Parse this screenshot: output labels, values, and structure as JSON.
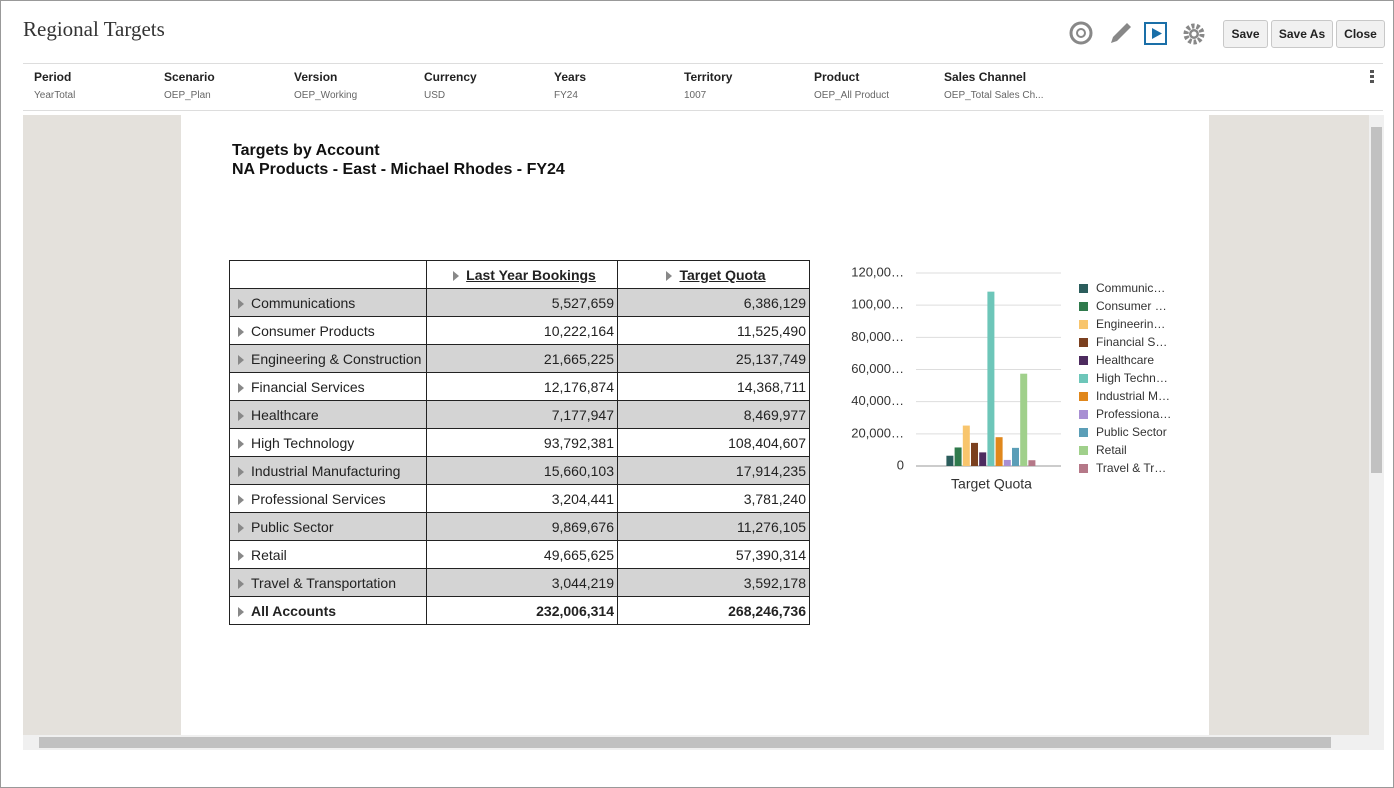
{
  "header": {
    "title": "Regional Targets",
    "buttons": [
      "Save",
      "Save As",
      "Close"
    ]
  },
  "pov": [
    {
      "label": "Period",
      "value": "YearTotal"
    },
    {
      "label": "Scenario",
      "value": "OEP_Plan"
    },
    {
      "label": "Version",
      "value": "OEP_Working"
    },
    {
      "label": "Currency",
      "value": "USD"
    },
    {
      "label": "Years",
      "value": "FY24"
    },
    {
      "label": "Territory",
      "value": "1007"
    },
    {
      "label": "Product",
      "value": "OEP_All Product"
    },
    {
      "label": "Sales Channel",
      "value": "OEP_Total Sales Ch..."
    }
  ],
  "report": {
    "title": "Targets by Account",
    "subtitle": "NA Products - East - Michael Rhodes - FY24"
  },
  "table": {
    "columns": [
      "Last Year Bookings",
      "Target Quota"
    ],
    "rows": [
      [
        "Communications",
        "5,527,659",
        "6,386,129"
      ],
      [
        "Consumer Products",
        "10,222,164",
        "11,525,490"
      ],
      [
        "Engineering & Construction",
        "21,665,225",
        "25,137,749"
      ],
      [
        "Financial Services",
        "12,176,874",
        "14,368,711"
      ],
      [
        "Healthcare",
        "7,177,947",
        "8,469,977"
      ],
      [
        "High Technology",
        "93,792,381",
        "108,404,607"
      ],
      [
        "Industrial Manufacturing",
        "15,660,103",
        "17,914,235"
      ],
      [
        "Professional Services",
        "3,204,441",
        "3,781,240"
      ],
      [
        "Public Sector",
        "9,869,676",
        "11,276,105"
      ],
      [
        "Retail",
        "49,665,625",
        "57,390,314"
      ],
      [
        "Travel & Transportation",
        "3,044,219",
        "3,592,178"
      ],
      [
        "All Accounts",
        "232,006,314",
        "268,246,736"
      ]
    ]
  },
  "chart_data": {
    "type": "bar",
    "categories": [
      "Target Quota"
    ],
    "series": [
      {
        "name": "Communic…",
        "color": "#2b5d5c",
        "values": [
          6386129
        ]
      },
      {
        "name": "Consumer …",
        "color": "#2f7a4c",
        "values": [
          11525490
        ]
      },
      {
        "name": "Engineerin…",
        "color": "#f8c56d",
        "values": [
          25137749
        ]
      },
      {
        "name": "Financial S…",
        "color": "#7b401f",
        "values": [
          14368711
        ]
      },
      {
        "name": "Healthcare",
        "color": "#4d2b5f",
        "values": [
          8469977
        ]
      },
      {
        "name": "High Techn…",
        "color": "#6dc6b9",
        "values": [
          108404607
        ]
      },
      {
        "name": "Industrial M…",
        "color": "#e0871c",
        "values": [
          17914235
        ]
      },
      {
        "name": "Professiona…",
        "color": "#a88fd3",
        "values": [
          3781240
        ]
      },
      {
        "name": "Public Sector",
        "color": "#5b9eb7",
        "values": [
          11276105
        ]
      },
      {
        "name": "Retail",
        "color": "#a0d08b",
        "values": [
          57390314
        ]
      },
      {
        "name": "Travel & Tr…",
        "color": "#b57888",
        "values": [
          3592178
        ]
      }
    ],
    "ylim": [
      0,
      120000000
    ],
    "yticks": [
      0,
      {
        "value": 20000000,
        "label": "20,000…"
      },
      {
        "value": 40000000,
        "label": "40,000…"
      },
      {
        "value": 60000000,
        "label": "60,000…"
      },
      {
        "value": 80000000,
        "label": "80,000…"
      },
      {
        "value": 100000000,
        "label": "100,00…"
      },
      {
        "value": 120000000,
        "label": "120,00…"
      }
    ],
    "grid": true
  }
}
